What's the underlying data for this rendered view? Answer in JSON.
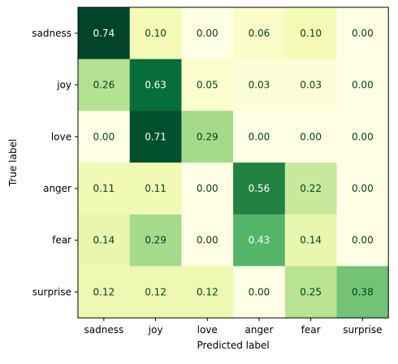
{
  "chart_data": {
    "type": "heatmap",
    "title": "",
    "xlabel": "Predicted label",
    "ylabel": "True label",
    "x_categories": [
      "sadness",
      "joy",
      "love",
      "anger",
      "fear",
      "surprise"
    ],
    "y_categories": [
      "sadness",
      "joy",
      "love",
      "anger",
      "fear",
      "surprise"
    ],
    "values": [
      [
        0.74,
        0.1,
        0.0,
        0.06,
        0.1,
        0.0
      ],
      [
        0.26,
        0.63,
        0.05,
        0.03,
        0.03,
        0.0
      ],
      [
        0.0,
        0.71,
        0.29,
        0.0,
        0.0,
        0.0
      ],
      [
        0.11,
        0.11,
        0.0,
        0.56,
        0.22,
        0.0
      ],
      [
        0.14,
        0.29,
        0.0,
        0.43,
        0.14,
        0.0
      ],
      [
        0.12,
        0.12,
        0.12,
        0.0,
        0.25,
        0.38
      ]
    ],
    "colormap": "YlGn",
    "colorbar": false,
    "grid": false
  }
}
